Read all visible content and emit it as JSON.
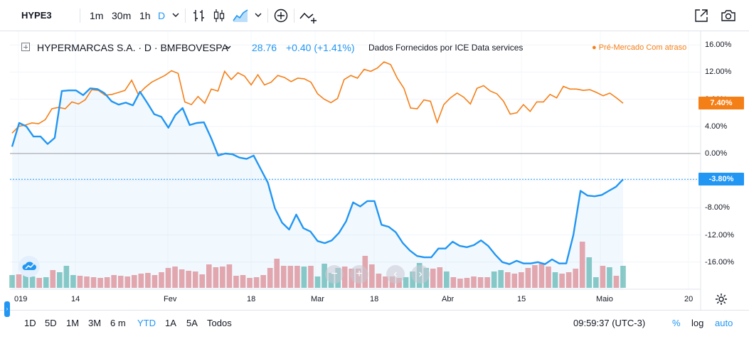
{
  "toolbar": {
    "symbol": "HYPE3",
    "intervals": [
      "1m",
      "30m",
      "1h",
      "D"
    ],
    "active_interval": "D"
  },
  "legend": {
    "name": "HYPERMARCAS S.A. · D · BMFBOVESPA",
    "price": "28.76",
    "change": "+0.40 (+1.41%)",
    "data_source": "Dados Fornecidos por ICE Data services",
    "status": "Pré-Mercado Com atraso"
  },
  "y_axis_labels": [
    "16.00%",
    "12.00%",
    "8.00%",
    "4.00%",
    "0.00%",
    "-4.00%",
    "-8.00%",
    "-12.00%",
    "-16.00%"
  ],
  "x_axis_labels": [
    "019",
    "14",
    "Fev",
    "18",
    "Mar",
    "18",
    "Abr",
    "15",
    "Maio",
    "20"
  ],
  "badges": {
    "compare": "7.40%",
    "main": "-3.80%"
  },
  "bottom": {
    "ranges": [
      "1D",
      "5D",
      "1M",
      "3M",
      "6 m",
      "YTD",
      "1A",
      "5A",
      "Todos"
    ],
    "active_range": "YTD",
    "time": "09:59:37 (UTC-3)",
    "percent": "%",
    "log": "log",
    "auto": "auto"
  },
  "colors": {
    "main_line": "#2196f3",
    "compare_line": "#f57f17",
    "volume_up": "#8ccbc5",
    "volume_down": "#eda7aa",
    "main_badge": "#2196f3",
    "compare_badge": "#f57f17"
  },
  "chart_data": {
    "type": "line",
    "y_unit": "%",
    "ylim": [
      -20,
      17
    ],
    "series": [
      {
        "values": [
          1.0,
          4.5,
          4.0,
          2.5,
          2.5,
          1.4,
          2.3,
          9.2,
          9.3,
          9.3,
          8.6,
          9.6,
          9.5,
          8.9,
          7.7,
          7.2,
          7.5,
          7.1,
          9.1,
          7.5,
          5.8,
          5.4,
          3.8,
          5.7,
          6.7,
          4.2,
          4.5,
          4.6,
          2.3,
          -0.3,
          0.0,
          -0.1,
          -0.6,
          -0.8,
          -0.3,
          -2.3,
          -4.3,
          -8.1,
          -10.2,
          -11.2,
          -9.0,
          -11.0,
          -11.5,
          -12.9,
          -13.2,
          -12.8,
          -11.7,
          -10.0,
          -7.2,
          -7.8,
          -7.0,
          -7.0,
          -10.5,
          -10.8,
          -11.6,
          -13.2,
          -14.3,
          -15.1,
          -15.3,
          -15.3,
          -14.0,
          -14.0,
          -13.0,
          -13.6,
          -13.8,
          -13.5,
          -12.8,
          -13.6,
          -14.9,
          -16.0,
          -16.3,
          -15.8,
          -16.2,
          -16.2,
          -16.0,
          -16.3,
          -15.6,
          -16.2,
          -16.2,
          -12.0,
          -5.5,
          -6.2,
          -6.3,
          -6.1,
          -5.5,
          -4.9,
          -3.8
        ]
      },
      {
        "values": [
          3.0,
          4.0,
          4.2,
          4.5,
          4.4,
          5.0,
          6.6,
          6.8,
          6.6,
          7.6,
          7.3,
          7.9,
          9.4,
          9.3,
          8.6,
          8.7,
          9.0,
          9.3,
          10.8,
          8.7,
          9.7,
          10.5,
          11.0,
          11.5,
          12.2,
          11.8,
          7.6,
          7.2,
          8.4,
          7.4,
          9.5,
          9.2,
          12.1,
          10.9,
          11.9,
          11.4,
          10.1,
          11.6,
          10.1,
          10.5,
          11.5,
          11.2,
          10.6,
          11.1,
          11.0,
          10.5,
          8.8,
          8.0,
          7.5,
          8.1,
          10.9,
          11.5,
          11.1,
          12.4,
          12.1,
          12.6,
          13.5,
          13.1,
          11.1,
          9.6,
          6.7,
          6.6,
          7.9,
          7.7,
          4.6,
          7.2,
          8.2,
          8.9,
          8.3,
          7.3,
          9.6,
          10.0,
          9.2,
          8.8,
          7.7,
          5.8,
          6.0,
          7.2,
          6.2,
          7.6,
          7.6,
          8.7,
          8.2,
          9.9,
          9.5,
          9.5,
          9.3,
          9.4,
          9.0,
          8.5,
          8.9,
          8.2,
          7.4
        ]
      }
    ],
    "volume": {
      "values": [
        18,
        19,
        19,
        16,
        14,
        15,
        25,
        22,
        31,
        18,
        17,
        16,
        15,
        14,
        15,
        18,
        17,
        16,
        18,
        20,
        21,
        18,
        22,
        28,
        30,
        26,
        24,
        23,
        19,
        33,
        29,
        30,
        33,
        17,
        18,
        14,
        15,
        18,
        28,
        41,
        31,
        31,
        31,
        30,
        31,
        16,
        34,
        21,
        28,
        30,
        27,
        27,
        45,
        33,
        20,
        16,
        16,
        14,
        15,
        23,
        35,
        28,
        27,
        29,
        23,
        15,
        13,
        14,
        16,
        15,
        15,
        23,
        25,
        22,
        20,
        22,
        28,
        32,
        34,
        30,
        22,
        20,
        22,
        27,
        65,
        43,
        15,
        31,
        29,
        17,
        31
      ],
      "up": [
        1,
        0,
        1,
        1,
        0,
        1,
        0,
        1,
        1,
        1,
        0,
        0,
        0,
        0,
        0,
        0,
        0,
        0,
        0,
        0,
        0,
        0,
        0,
        0,
        0,
        0,
        0,
        0,
        0,
        0,
        0,
        0,
        0,
        0,
        0,
        0,
        0,
        0,
        0,
        0,
        0,
        0,
        0,
        1,
        0,
        1,
        1,
        1,
        1,
        0,
        0,
        0,
        0,
        0,
        0,
        0,
        0,
        0,
        1,
        1,
        1,
        1,
        0,
        0,
        1,
        0,
        0,
        0,
        0,
        0,
        0,
        1,
        1,
        0,
        0,
        0,
        0,
        0,
        0,
        0,
        1,
        0,
        0,
        0,
        0,
        1,
        1,
        0,
        1,
        0,
        1
      ]
    }
  }
}
